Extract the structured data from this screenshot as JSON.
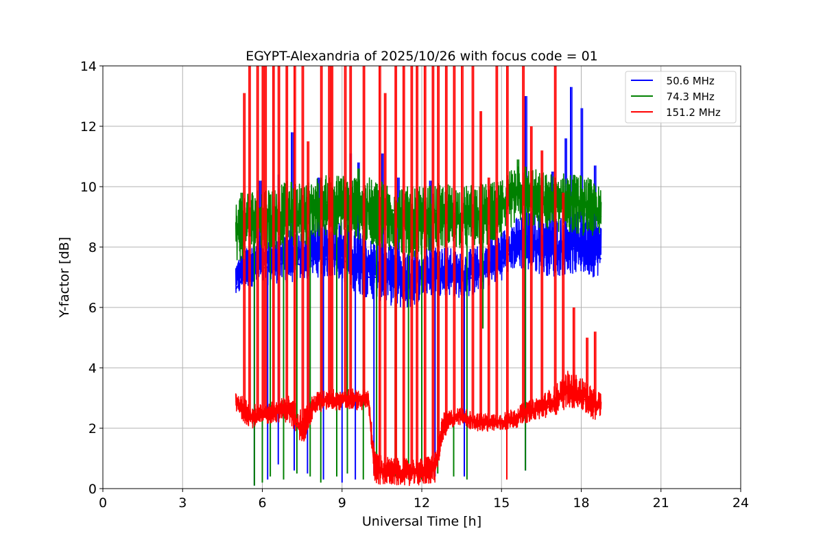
{
  "chart_data": {
    "type": "line",
    "title": "EGYPT-Alexandria of 2025/10/26 with focus code = 01",
    "xlabel": "Universal Time [h]",
    "ylabel": "Y-factor [dB]",
    "xlim": [
      0,
      24
    ],
    "ylim": [
      0,
      14
    ],
    "xticks": [
      0,
      3,
      6,
      9,
      12,
      15,
      18,
      21,
      24
    ],
    "yticks": [
      0,
      2,
      4,
      6,
      8,
      10,
      12,
      14
    ],
    "grid": true,
    "legend_position": "upper-right",
    "series": [
      {
        "name": "  50.6 MHz",
        "color": "#0000ff",
        "x": [
          5.0,
          5.3,
          5.6,
          6.0,
          6.5,
          7.0,
          7.5,
          8.0,
          8.5,
          9.0,
          9.5,
          10.0,
          10.5,
          11.0,
          11.5,
          12.0,
          12.5,
          13.0,
          13.5,
          14.0,
          14.5,
          15.0,
          15.3,
          15.6,
          16.0,
          16.5,
          17.0,
          17.5,
          18.0,
          18.5,
          18.75
        ],
        "y": [
          6.6,
          7.0,
          7.2,
          7.3,
          7.4,
          7.5,
          7.4,
          7.6,
          7.6,
          7.6,
          7.3,
          7.0,
          7.0,
          6.9,
          6.8,
          7.0,
          7.1,
          7.0,
          6.9,
          7.0,
          7.2,
          7.4,
          7.8,
          8.0,
          8.0,
          7.9,
          7.8,
          7.9,
          8.0,
          7.8,
          7.6
        ],
        "range_low": [
          6.3,
          6.6,
          6.7,
          6.7,
          6.8,
          6.8,
          6.9,
          7.0,
          7.0,
          6.9,
          6.5,
          6.3,
          6.2,
          6.0,
          5.9,
          6.3,
          6.4,
          6.4,
          6.3,
          6.4,
          6.7,
          6.9,
          7.2,
          7.3,
          7.2,
          7.1,
          7.0,
          7.1,
          7.1,
          7.0,
          7.1
        ],
        "range_high": [
          7.5,
          8.0,
          8.2,
          8.4,
          8.5,
          8.6,
          8.6,
          8.8,
          8.8,
          8.9,
          8.6,
          8.3,
          8.2,
          8.0,
          7.8,
          8.0,
          8.1,
          8.0,
          7.8,
          8.0,
          8.2,
          8.5,
          8.8,
          9.0,
          9.2,
          9.1,
          9.0,
          9.1,
          9.2,
          9.0,
          8.8
        ],
        "spikes": [
          [
            5.9,
            10.2
          ],
          [
            6.6,
            10.4
          ],
          [
            7.1,
            11.8
          ],
          [
            8.1,
            10.3
          ],
          [
            9.3,
            11.1
          ],
          [
            9.6,
            10.8
          ],
          [
            10.5,
            11.1
          ],
          [
            11.1,
            10.3
          ],
          [
            12.3,
            10.2
          ],
          [
            14.6,
            10.0
          ],
          [
            15.9,
            13.0
          ],
          [
            16.9,
            10.5
          ],
          [
            17.4,
            11.6
          ],
          [
            17.6,
            13.3
          ],
          [
            18.0,
            12.6
          ],
          [
            18.5,
            10.7
          ]
        ],
        "dips": [
          [
            5.7,
            0.1
          ],
          [
            6.2,
            0.3
          ],
          [
            6.6,
            0.8
          ],
          [
            7.2,
            0.6
          ],
          [
            7.7,
            0.5
          ],
          [
            8.3,
            0.3
          ],
          [
            9.0,
            0.2
          ],
          [
            9.5,
            0.3
          ],
          [
            10.2,
            0.5
          ],
          [
            11.6,
            0.4
          ],
          [
            12.5,
            0.4
          ],
          [
            13.6,
            0.4
          ],
          [
            15.9,
            0.6
          ]
        ]
      },
      {
        "name": "  74.3 MHz",
        "color": "#008000",
        "x": [
          5.0,
          5.3,
          5.6,
          6.0,
          6.5,
          7.0,
          7.5,
          8.0,
          8.5,
          9.0,
          9.5,
          10.0,
          10.5,
          11.0,
          11.5,
          12.0,
          12.5,
          13.0,
          13.5,
          14.0,
          14.5,
          15.0,
          15.3,
          15.6,
          16.0,
          16.5,
          17.0,
          17.5,
          18.0,
          18.5,
          18.75
        ],
        "y": [
          8.6,
          8.8,
          8.8,
          8.9,
          9.0,
          9.2,
          9.1,
          9.4,
          9.5,
          9.6,
          9.5,
          9.4,
          9.3,
          9.2,
          9.0,
          9.1,
          9.2,
          9.2,
          9.0,
          9.1,
          9.1,
          9.2,
          9.6,
          9.9,
          9.8,
          9.6,
          9.5,
          9.5,
          9.4,
          9.3,
          9.0
        ],
        "range_low": [
          7.2,
          7.7,
          7.8,
          7.8,
          7.9,
          8.0,
          8.0,
          8.2,
          8.4,
          8.4,
          8.3,
          8.1,
          8.0,
          7.8,
          7.6,
          7.7,
          7.9,
          8.0,
          7.9,
          8.0,
          8.0,
          8.3,
          8.6,
          8.8,
          8.7,
          8.6,
          8.5,
          8.5,
          8.4,
          8.3,
          8.3
        ],
        "range_high": [
          9.7,
          9.8,
          9.9,
          10.0,
          10.0,
          10.2,
          10.1,
          10.3,
          10.4,
          10.4,
          10.4,
          10.3,
          10.2,
          10.1,
          10.0,
          10.0,
          10.1,
          10.1,
          10.0,
          10.1,
          10.1,
          10.2,
          10.6,
          10.9,
          10.7,
          10.5,
          10.4,
          10.5,
          10.4,
          10.2,
          9.9
        ],
        "spikes": [
          [
            5.2,
            9.8
          ],
          [
            9.6,
            10.6
          ],
          [
            15.6,
            10.9
          ]
        ],
        "dips": [
          [
            5.7,
            0.1
          ],
          [
            6.0,
            0.2
          ],
          [
            6.3,
            0.4
          ],
          [
            6.8,
            0.3
          ],
          [
            7.3,
            0.5
          ],
          [
            7.8,
            0.4
          ],
          [
            8.2,
            0.2
          ],
          [
            8.8,
            0.4
          ],
          [
            9.2,
            0.5
          ],
          [
            9.8,
            0.3
          ],
          [
            10.3,
            0.6
          ],
          [
            11.0,
            0.4
          ],
          [
            11.5,
            0.3
          ],
          [
            12.0,
            0.3
          ],
          [
            12.6,
            0.5
          ],
          [
            13.2,
            0.4
          ],
          [
            13.7,
            0.3
          ],
          [
            14.3,
            5.3
          ],
          [
            15.9,
            0.6
          ]
        ]
      },
      {
        "name": "151.2 MHz",
        "color": "#ff0000",
        "x": [
          5.0,
          5.3,
          5.6,
          6.0,
          6.5,
          7.0,
          7.5,
          8.0,
          8.5,
          9.0,
          9.5,
          10.0,
          10.2,
          10.5,
          11.0,
          11.5,
          12.0,
          12.5,
          12.8,
          13.0,
          13.5,
          14.0,
          14.5,
          15.0,
          15.5,
          16.0,
          16.5,
          17.0,
          17.5,
          18.0,
          18.5,
          18.75
        ],
        "y": [
          2.9,
          2.6,
          2.4,
          2.4,
          2.5,
          2.5,
          1.8,
          2.8,
          2.9,
          2.9,
          2.9,
          2.9,
          0.8,
          0.6,
          0.5,
          0.5,
          0.5,
          0.6,
          2.0,
          2.2,
          2.4,
          2.2,
          2.2,
          2.2,
          2.3,
          2.5,
          2.6,
          2.8,
          3.2,
          3.0,
          2.8,
          2.9
        ],
        "range_low": [
          2.5,
          2.2,
          2.0,
          2.1,
          2.2,
          2.2,
          1.4,
          2.5,
          2.6,
          2.6,
          2.6,
          2.6,
          0.2,
          0.1,
          0.1,
          0.1,
          0.1,
          0.2,
          1.6,
          1.9,
          2.1,
          1.9,
          1.9,
          1.9,
          2.0,
          2.2,
          2.3,
          2.4,
          2.7,
          2.6,
          2.2,
          2.4
        ],
        "range_high": [
          3.3,
          3.0,
          2.8,
          2.8,
          2.9,
          3.1,
          2.6,
          3.2,
          3.3,
          3.3,
          3.3,
          3.3,
          1.4,
          1.1,
          1.0,
          1.0,
          1.0,
          1.2,
          2.5,
          2.6,
          2.7,
          2.5,
          2.5,
          2.5,
          2.7,
          2.9,
          3.1,
          3.4,
          3.9,
          3.7,
          3.3,
          3.2
        ],
        "spikes": [
          [
            5.3,
            13.1
          ],
          [
            5.5,
            14.0
          ],
          [
            5.8,
            14.0
          ],
          [
            6.0,
            14.0
          ],
          [
            6.1,
            14.0
          ],
          [
            6.4,
            14.0
          ],
          [
            6.6,
            14.0
          ],
          [
            6.9,
            14.0
          ],
          [
            7.2,
            14.0
          ],
          [
            7.5,
            14.0
          ],
          [
            7.7,
            11.5
          ],
          [
            8.2,
            14.0
          ],
          [
            8.5,
            14.0
          ],
          [
            8.6,
            14.0
          ],
          [
            9.1,
            14.0
          ],
          [
            9.3,
            14.0
          ],
          [
            9.8,
            14.0
          ],
          [
            10.4,
            14.0
          ],
          [
            10.6,
            13.1
          ],
          [
            11.0,
            14.0
          ],
          [
            11.3,
            14.0
          ],
          [
            11.6,
            14.0
          ],
          [
            11.8,
            14.0
          ],
          [
            12.1,
            14.0
          ],
          [
            12.4,
            14.0
          ],
          [
            12.6,
            14.0
          ],
          [
            12.9,
            14.0
          ],
          [
            13.2,
            14.0
          ],
          [
            13.5,
            14.0
          ],
          [
            13.9,
            14.0
          ],
          [
            14.2,
            12.5
          ],
          [
            14.5,
            10.3
          ],
          [
            14.8,
            14.0
          ],
          [
            15.2,
            14.0
          ],
          [
            15.8,
            14.0
          ],
          [
            16.1,
            12.0
          ],
          [
            16.5,
            11.2
          ],
          [
            17.0,
            14.0
          ],
          [
            17.3,
            9.8
          ],
          [
            17.7,
            6.0
          ],
          [
            18.2,
            5.0
          ],
          [
            18.5,
            5.2
          ]
        ],
        "dips": [
          [
            15.2,
            0.3
          ]
        ]
      }
    ]
  }
}
